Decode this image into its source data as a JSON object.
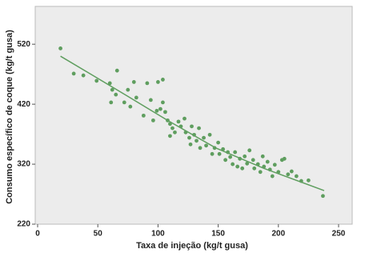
{
  "chart_data": {
    "type": "scatter",
    "x_label": "Taxa de injeção (kg/t gusa)",
    "y_label": "Consumo específico de coque (kg/t gusa)",
    "xlim": [
      -2,
      261.3
    ],
    "ylim": [
      220,
      583
    ],
    "xticks": [
      0,
      50,
      100,
      150,
      200,
      250
    ],
    "yticks": [
      220,
      320,
      420,
      520
    ],
    "series": [
      {
        "mode": "markers",
        "color": "#5f9e5f",
        "x": [
          19,
          30,
          38,
          49,
          60,
          66,
          62,
          65,
          61,
          75,
          72,
          77,
          80,
          91,
          100,
          104,
          94,
          104,
          102,
          106,
          108,
          110,
          112,
          114,
          110,
          117,
          119,
          122,
          123,
          126,
          128,
          127,
          130,
          132,
          134,
          135,
          138,
          140,
          143,
          145,
          147,
          150,
          151,
          154,
          156,
          158,
          160,
          162,
          164,
          166,
          168,
          170,
          172,
          174,
          176,
          179,
          180,
          183,
          185,
          187,
          188,
          191,
          193,
          195,
          197,
          200,
          203,
          205,
          208,
          211,
          215,
          219,
          225,
          237,
          96,
          99,
          88,
          82
        ],
        "values": [
          513,
          471,
          468,
          459,
          455,
          476,
          444,
          436,
          423,
          444,
          423,
          416,
          457,
          455,
          457,
          461,
          427,
          423,
          412,
          407,
          393,
          387,
          380,
          373,
          367,
          391,
          383,
          396,
          373,
          364,
          383,
          353,
          369,
          359,
          380,
          347,
          364,
          351,
          369,
          337,
          347,
          356,
          337,
          345,
          327,
          340,
          332,
          320,
          340,
          316,
          329,
          313,
          333,
          321,
          343,
          327,
          313,
          320,
          307,
          333,
          316,
          324,
          311,
          300,
          319,
          307,
          327,
          329,
          303,
          308,
          300,
          292,
          293,
          267,
          393,
          409,
          401,
          431
        ]
      },
      {
        "mode": "lines",
        "color": "#5f9e5f",
        "x": [
          19,
          50,
          75,
          108,
          148,
          188,
          238
        ],
        "values": [
          500,
          463,
          433,
          393,
          347,
          313,
          276
        ]
      }
    ]
  }
}
